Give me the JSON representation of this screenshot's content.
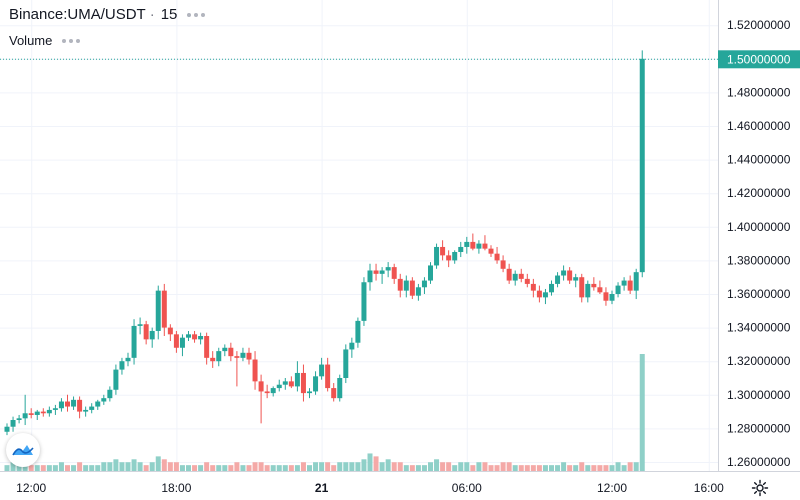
{
  "legend": {
    "symbol": "Binance:UMA/USDT",
    "interval": "15",
    "volume_label": "Volume"
  },
  "icons": {
    "logo": "tradingview-logo-icon",
    "settings": "gear-icon",
    "more": "more-dots-icon"
  },
  "colors": {
    "up": "#26a69a",
    "down": "#ef5350",
    "up_volume": "#8fd0c8",
    "down_volume": "#f4a9a7",
    "grid": "#f0f3fa",
    "last_price": "#26a69a"
  },
  "chart_data": {
    "type": "candlestick",
    "title": "Binance:UMA/USDT",
    "interval": "15",
    "grid": true,
    "ylim": [
      1.25,
      1.525
    ],
    "y_ticks": [
      "1.26000000",
      "1.28000000",
      "1.30000000",
      "1.32000000",
      "1.34000000",
      "1.36000000",
      "1.38000000",
      "1.40000000",
      "1.42000000",
      "1.44000000",
      "1.46000000",
      "1.48000000",
      "1.50000000",
      "1.52000000"
    ],
    "x_ticks": [
      {
        "label": "12:00",
        "index": 4,
        "bold": false
      },
      {
        "label": "18:00",
        "index": 28,
        "bold": false
      },
      {
        "label": "21",
        "index": 52,
        "bold": true
      },
      {
        "label": "06:00",
        "index": 76,
        "bold": false
      },
      {
        "label": "12:00",
        "index": 100,
        "bold": false
      },
      {
        "label": "16:00",
        "index": 116,
        "bold": false
      }
    ],
    "last_price": "1.50000000",
    "candles": [
      [
        1.278,
        1.283,
        1.276,
        1.281,
        2
      ],
      [
        1.281,
        1.287,
        1.278,
        1.285,
        3
      ],
      [
        1.285,
        1.288,
        1.283,
        1.286,
        2
      ],
      [
        1.286,
        1.3,
        1.282,
        1.289,
        4
      ],
      [
        1.289,
        1.292,
        1.286,
        1.288,
        2
      ],
      [
        1.288,
        1.291,
        1.285,
        1.29,
        2
      ],
      [
        1.29,
        1.292,
        1.287,
        1.289,
        2
      ],
      [
        1.289,
        1.293,
        1.287,
        1.291,
        2
      ],
      [
        1.291,
        1.294,
        1.288,
        1.292,
        2
      ],
      [
        1.292,
        1.298,
        1.29,
        1.296,
        3
      ],
      [
        1.296,
        1.3,
        1.29,
        1.293,
        2
      ],
      [
        1.293,
        1.299,
        1.291,
        1.297,
        2
      ],
      [
        1.297,
        1.299,
        1.286,
        1.29,
        3
      ],
      [
        1.29,
        1.293,
        1.287,
        1.291,
        2
      ],
      [
        1.291,
        1.295,
        1.289,
        1.293,
        2
      ],
      [
        1.293,
        1.297,
        1.291,
        1.296,
        2
      ],
      [
        1.296,
        1.3,
        1.294,
        1.298,
        3
      ],
      [
        1.298,
        1.305,
        1.296,
        1.303,
        3
      ],
      [
        1.303,
        1.318,
        1.3,
        1.315,
        4
      ],
      [
        1.315,
        1.322,
        1.312,
        1.32,
        3
      ],
      [
        1.32,
        1.325,
        1.317,
        1.322,
        3
      ],
      [
        1.322,
        1.345,
        1.318,
        1.341,
        4
      ],
      [
        1.341,
        1.346,
        1.336,
        1.342,
        3
      ],
      [
        1.342,
        1.344,
        1.33,
        1.333,
        2
      ],
      [
        1.333,
        1.34,
        1.328,
        1.338,
        3
      ],
      [
        1.338,
        1.365,
        1.333,
        1.362,
        5
      ],
      [
        1.362,
        1.366,
        1.335,
        1.34,
        4
      ],
      [
        1.34,
        1.342,
        1.332,
        1.336,
        3
      ],
      [
        1.336,
        1.338,
        1.325,
        1.328,
        3
      ],
      [
        1.328,
        1.336,
        1.323,
        1.334,
        2
      ],
      [
        1.334,
        1.338,
        1.332,
        1.336,
        2
      ],
      [
        1.336,
        1.338,
        1.331,
        1.333,
        2
      ],
      [
        1.333,
        1.337,
        1.33,
        1.335,
        2
      ],
      [
        1.335,
        1.337,
        1.318,
        1.322,
        3
      ],
      [
        1.322,
        1.326,
        1.316,
        1.32,
        2
      ],
      [
        1.32,
        1.328,
        1.317,
        1.326,
        2
      ],
      [
        1.326,
        1.33,
        1.323,
        1.328,
        2
      ],
      [
        1.328,
        1.331,
        1.32,
        1.323,
        2
      ],
      [
        1.323,
        1.326,
        1.305,
        1.322,
        3
      ],
      [
        1.322,
        1.328,
        1.32,
        1.325,
        2
      ],
      [
        1.325,
        1.328,
        1.318,
        1.321,
        2
      ],
      [
        1.321,
        1.326,
        1.303,
        1.308,
        3
      ],
      [
        1.308,
        1.312,
        1.283,
        1.302,
        3
      ],
      [
        1.302,
        1.306,
        1.298,
        1.301,
        2
      ],
      [
        1.301,
        1.305,
        1.299,
        1.304,
        2
      ],
      [
        1.304,
        1.309,
        1.302,
        1.306,
        2
      ],
      [
        1.306,
        1.31,
        1.303,
        1.308,
        2
      ],
      [
        1.308,
        1.311,
        1.304,
        1.305,
        2
      ],
      [
        1.305,
        1.32,
        1.302,
        1.313,
        2
      ],
      [
        1.313,
        1.318,
        1.296,
        1.301,
        3
      ],
      [
        1.301,
        1.304,
        1.298,
        1.302,
        2
      ],
      [
        1.302,
        1.314,
        1.3,
        1.311,
        3
      ],
      [
        1.311,
        1.322,
        1.309,
        1.318,
        3
      ],
      [
        1.318,
        1.322,
        1.302,
        1.304,
        3
      ],
      [
        1.304,
        1.307,
        1.296,
        1.298,
        2
      ],
      [
        1.298,
        1.312,
        1.296,
        1.31,
        3
      ],
      [
        1.31,
        1.33,
        1.307,
        1.327,
        3
      ],
      [
        1.327,
        1.334,
        1.322,
        1.331,
        3
      ],
      [
        1.331,
        1.346,
        1.328,
        1.344,
        3
      ],
      [
        1.344,
        1.37,
        1.341,
        1.367,
        4
      ],
      [
        1.367,
        1.378,
        1.362,
        1.374,
        6
      ],
      [
        1.374,
        1.378,
        1.368,
        1.372,
        5
      ],
      [
        1.372,
        1.376,
        1.366,
        1.374,
        3
      ],
      [
        1.374,
        1.379,
        1.37,
        1.376,
        4
      ],
      [
        1.376,
        1.378,
        1.366,
        1.369,
        3
      ],
      [
        1.369,
        1.372,
        1.358,
        1.362,
        3
      ],
      [
        1.362,
        1.371,
        1.358,
        1.368,
        2
      ],
      [
        1.368,
        1.37,
        1.357,
        1.359,
        2
      ],
      [
        1.359,
        1.366,
        1.356,
        1.364,
        2
      ],
      [
        1.364,
        1.37,
        1.36,
        1.368,
        2
      ],
      [
        1.368,
        1.379,
        1.366,
        1.377,
        3
      ],
      [
        1.377,
        1.39,
        1.375,
        1.388,
        4
      ],
      [
        1.388,
        1.392,
        1.38,
        1.383,
        3
      ],
      [
        1.383,
        1.386,
        1.376,
        1.38,
        3
      ],
      [
        1.38,
        1.386,
        1.378,
        1.385,
        2
      ],
      [
        1.385,
        1.391,
        1.382,
        1.388,
        3
      ],
      [
        1.388,
        1.394,
        1.384,
        1.391,
        3
      ],
      [
        1.391,
        1.396,
        1.386,
        1.387,
        2
      ],
      [
        1.387,
        1.392,
        1.384,
        1.39,
        3
      ],
      [
        1.39,
        1.395,
        1.386,
        1.387,
        3
      ],
      [
        1.387,
        1.389,
        1.382,
        1.384,
        2
      ],
      [
        1.384,
        1.388,
        1.378,
        1.38,
        2
      ],
      [
        1.38,
        1.383,
        1.373,
        1.375,
        3
      ],
      [
        1.375,
        1.378,
        1.366,
        1.368,
        3
      ],
      [
        1.368,
        1.374,
        1.365,
        1.372,
        2
      ],
      [
        1.372,
        1.375,
        1.367,
        1.369,
        2
      ],
      [
        1.369,
        1.372,
        1.364,
        1.366,
        2
      ],
      [
        1.366,
        1.369,
        1.358,
        1.362,
        2
      ],
      [
        1.362,
        1.365,
        1.355,
        1.358,
        2
      ],
      [
        1.358,
        1.363,
        1.354,
        1.361,
        2
      ],
      [
        1.361,
        1.368,
        1.359,
        1.366,
        2
      ],
      [
        1.366,
        1.373,
        1.364,
        1.371,
        2
      ],
      [
        1.371,
        1.377,
        1.368,
        1.374,
        3
      ],
      [
        1.374,
        1.376,
        1.366,
        1.368,
        2
      ],
      [
        1.368,
        1.372,
        1.364,
        1.37,
        2
      ],
      [
        1.37,
        1.372,
        1.355,
        1.358,
        3
      ],
      [
        1.358,
        1.368,
        1.355,
        1.366,
        2
      ],
      [
        1.366,
        1.37,
        1.362,
        1.364,
        2
      ],
      [
        1.364,
        1.368,
        1.36,
        1.361,
        2
      ],
      [
        1.361,
        1.364,
        1.353,
        1.356,
        2
      ],
      [
        1.356,
        1.362,
        1.354,
        1.36,
        2
      ],
      [
        1.36,
        1.367,
        1.358,
        1.365,
        3
      ],
      [
        1.365,
        1.37,
        1.362,
        1.368,
        2
      ],
      [
        1.368,
        1.371,
        1.36,
        1.362,
        3
      ],
      [
        1.362,
        1.375,
        1.357,
        1.373,
        3
      ],
      [
        1.373,
        1.505,
        1.37,
        1.5,
        40
      ]
    ],
    "volume_max": 40
  }
}
